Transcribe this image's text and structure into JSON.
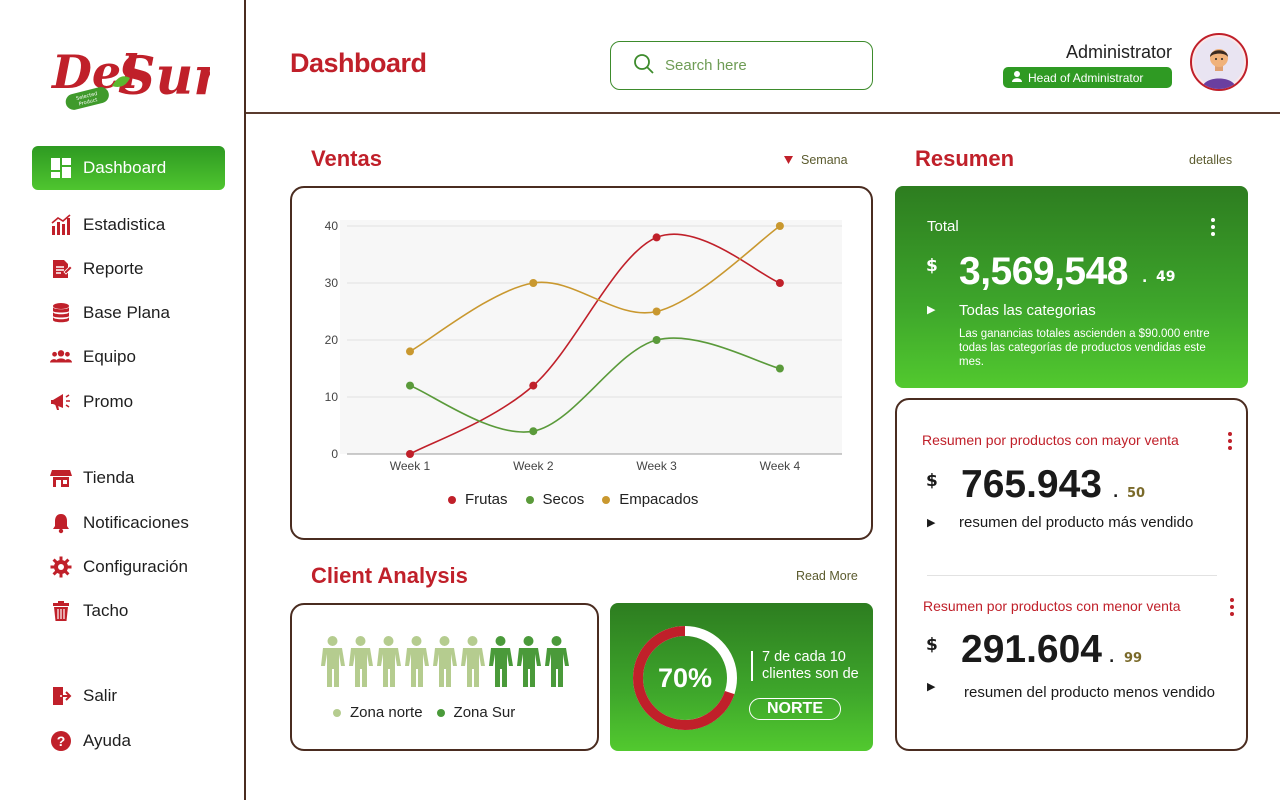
{
  "logo": {
    "text_del": "Del",
    "text_sur": "Sur",
    "badge": "Selected Product"
  },
  "nav": {
    "items": [
      {
        "label": "Dashboard",
        "icon": "dashboard-icon",
        "active": true
      },
      {
        "label": "Estadistica",
        "icon": "chart-icon"
      },
      {
        "label": "Reporte",
        "icon": "report-icon"
      },
      {
        "label": "Base Plana",
        "icon": "database-icon"
      },
      {
        "label": "Equipo",
        "icon": "team-icon"
      },
      {
        "label": "Promo",
        "icon": "megaphone-icon"
      },
      {
        "label": "Tienda",
        "icon": "store-icon"
      },
      {
        "label": "Notificaciones",
        "icon": "bell-icon"
      },
      {
        "label": "Configuración",
        "icon": "gear-icon"
      },
      {
        "label": "Tacho",
        "icon": "trash-icon"
      },
      {
        "label": "Salir",
        "icon": "logout-icon"
      },
      {
        "label": "Ayuda",
        "icon": "help-icon"
      }
    ]
  },
  "header": {
    "title": "Dashboard",
    "search_placeholder": "Search here",
    "admin_name": "Administrator",
    "admin_role": "Head of Administrator"
  },
  "ventas": {
    "title": "Ventas",
    "period": "Semana"
  },
  "chart_data": {
    "type": "line",
    "categories": [
      "Week 1",
      "Week 2",
      "Week 3",
      "Week 4"
    ],
    "ylim": [
      0,
      40
    ],
    "yticks": [
      0,
      10,
      20,
      30,
      40
    ],
    "series": [
      {
        "name": "Frutas",
        "color": "#c0202a",
        "values": [
          0,
          12,
          38,
          30
        ]
      },
      {
        "name": "Secos",
        "color": "#5a9a3a",
        "values": [
          12,
          4,
          20,
          15
        ]
      },
      {
        "name": "Empacados",
        "color": "#c9982f",
        "values": [
          18,
          30,
          25,
          40
        ]
      }
    ]
  },
  "client": {
    "title": "Client Analysis",
    "read_more": "Read More",
    "legend_norte": "Zona norte",
    "legend_sur": "Zona Sur",
    "norte_count": 6,
    "sur_count": 3,
    "percent_label": "70%",
    "percent_value": 0.7,
    "caption_line1": "7 de cada 10",
    "caption_line2": "clientes son de",
    "zone_badge": "NORTE"
  },
  "resumen": {
    "title": "Resumen",
    "detalles": "detalles",
    "total_label": "Total",
    "currency": "$",
    "total_value": "3,569,548",
    "total_decimals": "49",
    "total_sep": ".",
    "categories_label": "Todas las categorias",
    "description": "Las ganancias totales ascienden a $90.000 entre todas las categorías de productos vendidas este mes.",
    "top_title": "Resumen por productos con mayor venta",
    "top_value": "765.943",
    "top_decimals": "50",
    "top_caption": "resumen del producto más vendido",
    "low_title": "Resumen por productos con menor venta",
    "low_value": "291.604",
    "low_decimals": "99",
    "low_caption": "resumen del producto menos vendido"
  },
  "colors": {
    "brand_red": "#c0202a",
    "brand_green": "#3ea62b",
    "border_brown": "#4a2c20"
  }
}
